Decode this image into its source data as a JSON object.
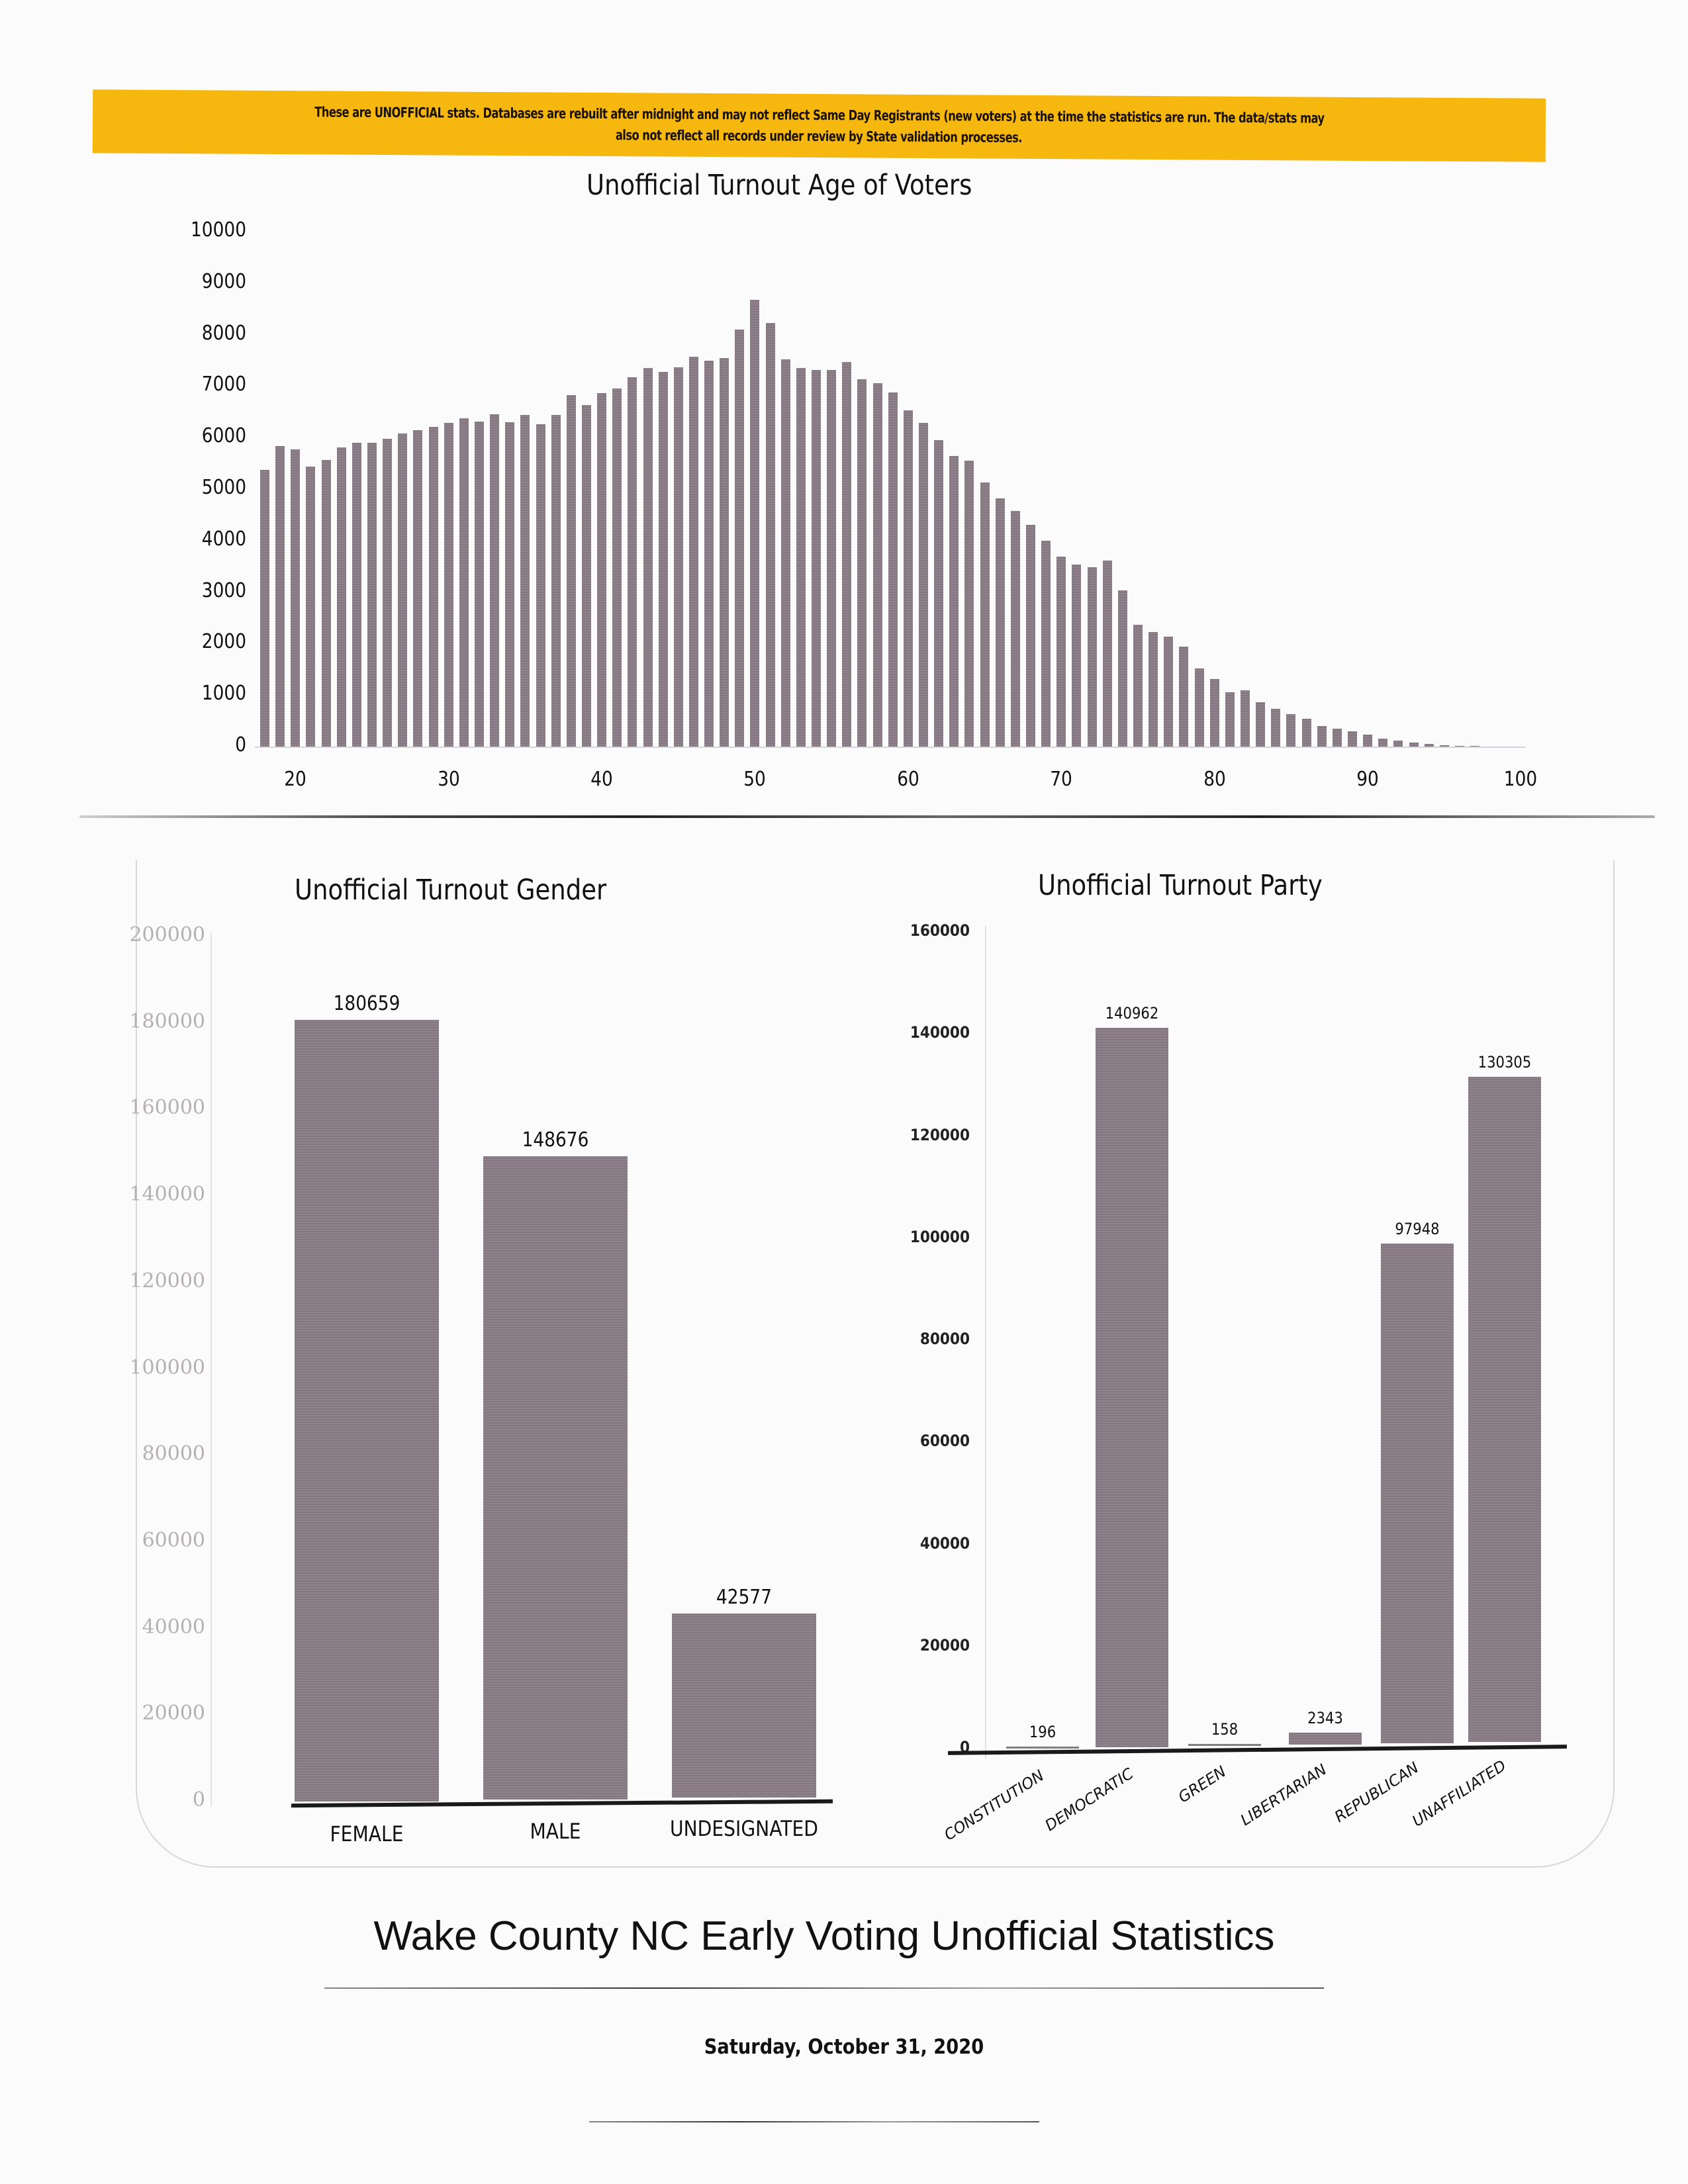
{
  "banner": {
    "line1": "These are UNOFFICIAL stats.  Databases are rebuilt after midnight and may not reflect Same Day Registrants (new voters) at the time the statistics are run. The data/stats may",
    "line2": "also not reflect all records under review by State validation processes.",
    "color": "#f6b70e"
  },
  "age_chart": {
    "title": "Unofficial Turnout Age of Voters",
    "y_ticks": [
      "10000",
      "9000",
      "8000",
      "7000",
      "6000",
      "5000",
      "4000",
      "3000",
      "2000",
      "1000",
      "0"
    ],
    "x_ticks": [
      "20",
      "30",
      "40",
      "50",
      "60",
      "70",
      "80",
      "90",
      "100"
    ]
  },
  "gender_chart": {
    "title": "Unofficial Turnout Gender",
    "y_ticks": [
      "200000",
      "180000",
      "160000",
      "140000",
      "120000",
      "100000",
      "80000",
      "60000",
      "40000",
      "20000",
      "0"
    ],
    "bars": [
      {
        "label": "FEMALE",
        "value_label": "180659"
      },
      {
        "label": "MALE",
        "value_label": "148676"
      },
      {
        "label": "UNDESIGNATED",
        "value_label": "42577"
      }
    ]
  },
  "party_chart": {
    "title": "Unofficial Turnout Party",
    "y_ticks": [
      "160000",
      "140000",
      "120000",
      "100000",
      "80000",
      "60000",
      "40000",
      "20000",
      "0"
    ],
    "bars": [
      {
        "label": "CONSTITUTION",
        "value_label": "196"
      },
      {
        "label": "DEMOCRATIC",
        "value_label": "140962"
      },
      {
        "label": "GREEN",
        "value_label": "158"
      },
      {
        "label": "LIBERTARIAN",
        "value_label": "2343"
      },
      {
        "label": "REPUBLICAN",
        "value_label": "97948"
      },
      {
        "label": "UNAFFILIATED",
        "value_label": "130305"
      }
    ]
  },
  "footer": {
    "title": "Wake County NC Early Voting Unofficial Statistics",
    "date": "Saturday, October 31, 2020"
  },
  "colors": {
    "bar": "#8b7d87",
    "banner": "#f6b70e",
    "gender_axis_text": "#b5b0b3"
  },
  "chart_data": [
    {
      "type": "bar",
      "title": "Unofficial Turnout Age of Voters",
      "xlabel": "",
      "ylabel": "",
      "ylim": [
        0,
        10000
      ],
      "grid": false,
      "x": [
        18,
        19,
        20,
        21,
        22,
        23,
        24,
        25,
        26,
        27,
        28,
        29,
        30,
        31,
        32,
        33,
        34,
        35,
        36,
        37,
        38,
        39,
        40,
        41,
        42,
        43,
        44,
        45,
        46,
        47,
        48,
        49,
        50,
        51,
        52,
        53,
        54,
        55,
        56,
        57,
        58,
        59,
        60,
        61,
        62,
        63,
        64,
        65,
        66,
        67,
        68,
        69,
        70,
        71,
        72,
        73,
        74,
        75,
        76,
        77,
        78,
        79,
        80,
        81,
        82,
        83,
        84,
        85,
        86,
        87,
        88,
        89,
        90,
        91,
        92,
        93,
        94,
        95,
        96,
        97,
        98,
        99,
        100
      ],
      "values": [
        5370,
        5830,
        5765,
        5440,
        5570,
        5810,
        5900,
        5900,
        5980,
        6080,
        6150,
        6210,
        6290,
        6375,
        6310,
        6455,
        6300,
        6440,
        6255,
        6440,
        6830,
        6630,
        6870,
        6960,
        7170,
        7355,
        7275,
        7360,
        7570,
        7500,
        7540,
        8100,
        8680,
        8230,
        7520,
        7350,
        7320,
        7310,
        7470,
        7135,
        7055,
        6875,
        6525,
        6280,
        5945,
        5640,
        5555,
        5125,
        4820,
        4575,
        4300,
        3995,
        3690,
        3535,
        3480,
        3615,
        3035,
        2370,
        2225,
        2140,
        1945,
        1515,
        1315,
        1055,
        1090,
        860,
        730,
        625,
        540,
        395,
        350,
        300,
        225,
        150,
        110,
        75,
        45,
        25,
        15,
        10,
        5,
        4,
        3
      ],
      "x_ticks": [
        20,
        30,
        40,
        50,
        60,
        70,
        80,
        90,
        100
      ],
      "y_ticks": [
        0,
        1000,
        2000,
        3000,
        4000,
        5000,
        6000,
        7000,
        8000,
        9000,
        10000
      ]
    },
    {
      "type": "bar",
      "title": "Unofficial Turnout Gender",
      "categories": [
        "FEMALE",
        "MALE",
        "UNDESIGNATED"
      ],
      "values": [
        180659,
        148676,
        42577
      ],
      "xlabel": "",
      "ylabel": "",
      "ylim": [
        0,
        200000
      ],
      "y_ticks": [
        0,
        20000,
        40000,
        60000,
        80000,
        100000,
        120000,
        140000,
        160000,
        180000,
        200000
      ],
      "data_labels": true
    },
    {
      "type": "bar",
      "title": "Unofficial Turnout Party",
      "categories": [
        "CONSTITUTION",
        "DEMOCRATIC",
        "GREEN",
        "LIBERTARIAN",
        "REPUBLICAN",
        "UNAFFILIATED"
      ],
      "values": [
        196,
        140962,
        158,
        2343,
        97948,
        130305
      ],
      "xlabel": "",
      "ylabel": "",
      "ylim": [
        0,
        160000
      ],
      "y_ticks": [
        0,
        20000,
        40000,
        60000,
        80000,
        100000,
        120000,
        140000,
        160000
      ],
      "data_labels": true,
      "x_label_rotation": -33
    }
  ]
}
